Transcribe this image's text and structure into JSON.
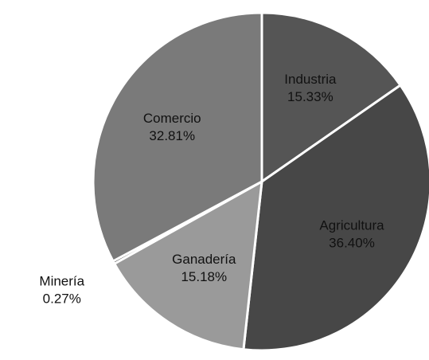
{
  "chart_data": {
    "type": "pie",
    "categories": [
      "Industria",
      "Agricultura",
      "Ganadería",
      "Minería",
      "Comercio"
    ],
    "values": [
      15.33,
      36.4,
      15.18,
      0.27,
      32.81
    ],
    "value_labels": [
      "15.33%",
      "36.40%",
      "15.18%",
      "0.27%",
      "32.81%"
    ],
    "colors": [
      "#555555",
      "#474747",
      "#9a9a9a",
      "#1a1a1a",
      "#7a7a7a"
    ]
  }
}
